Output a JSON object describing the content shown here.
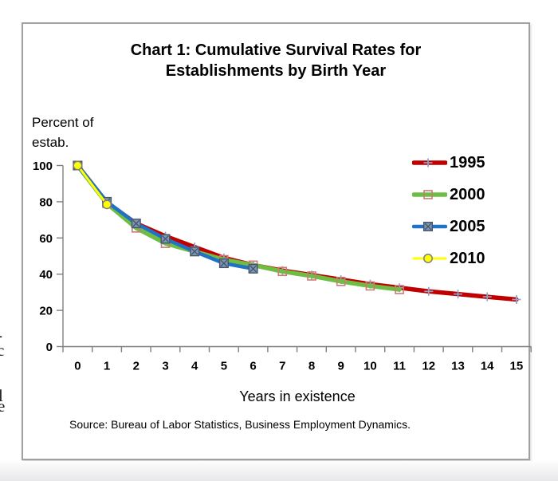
{
  "page": {
    "edge_fragments": [
      {
        "char": "-"
      },
      {
        "char": "c"
      },
      {
        "char": "l"
      },
      {
        "char": "e"
      }
    ]
  },
  "chart": {
    "title_line1": "Chart 1: Cumulative Survival Rates for",
    "title_line2": "Establishments by Birth Year",
    "y_axis_label_line1": "Percent of",
    "y_axis_label_line2": "estab.",
    "x_axis_title": "Years in existence",
    "source_note": "Source: Bureau of Labor Statistics, Business Employment Dynamics.",
    "axis_color": "#7f7f7f",
    "text_color": "#000000"
  },
  "chart_data": {
    "type": "line",
    "title": "Chart 1: Cumulative Survival Rates for Establishments by Birth Year",
    "xlabel": "Years in existence",
    "ylabel": "Percent of estab.",
    "x": [
      0,
      1,
      2,
      3,
      4,
      5,
      6,
      7,
      8,
      9,
      10,
      11,
      12,
      13,
      14,
      15
    ],
    "ylim": [
      0,
      100
    ],
    "ytick_interval": 20,
    "grid": false,
    "legend_position": "right",
    "series": [
      {
        "name": "1995",
        "color": "#c00000",
        "marker": "plus-cross",
        "marker_color": "#8fa3c8",
        "values": [
          100,
          79.5,
          68,
          61,
          55,
          49,
          45,
          42,
          39.5,
          37,
          34.5,
          32.5,
          30.5,
          29,
          27.5,
          26
        ]
      },
      {
        "name": "2000",
        "color": "#6fbe44",
        "marker": "open-square",
        "marker_color": "#c97b76",
        "values": [
          100,
          79,
          65.5,
          57,
          52.5,
          48,
          45,
          41.5,
          39,
          36,
          33.5,
          31.5
        ]
      },
      {
        "name": "2005",
        "color": "#1f72c4",
        "marker": "x-square",
        "marker_color": "#44546a",
        "marker_fill": "#7d96b4",
        "values": [
          100,
          80,
          68,
          59.5,
          52.5,
          46,
          43
        ]
      },
      {
        "name": "2010",
        "color": "#ffff00",
        "marker": "circle",
        "marker_color": "#7f7f7f",
        "marker_fill": "#ffff00",
        "values": [
          100,
          78.5
        ]
      }
    ]
  }
}
